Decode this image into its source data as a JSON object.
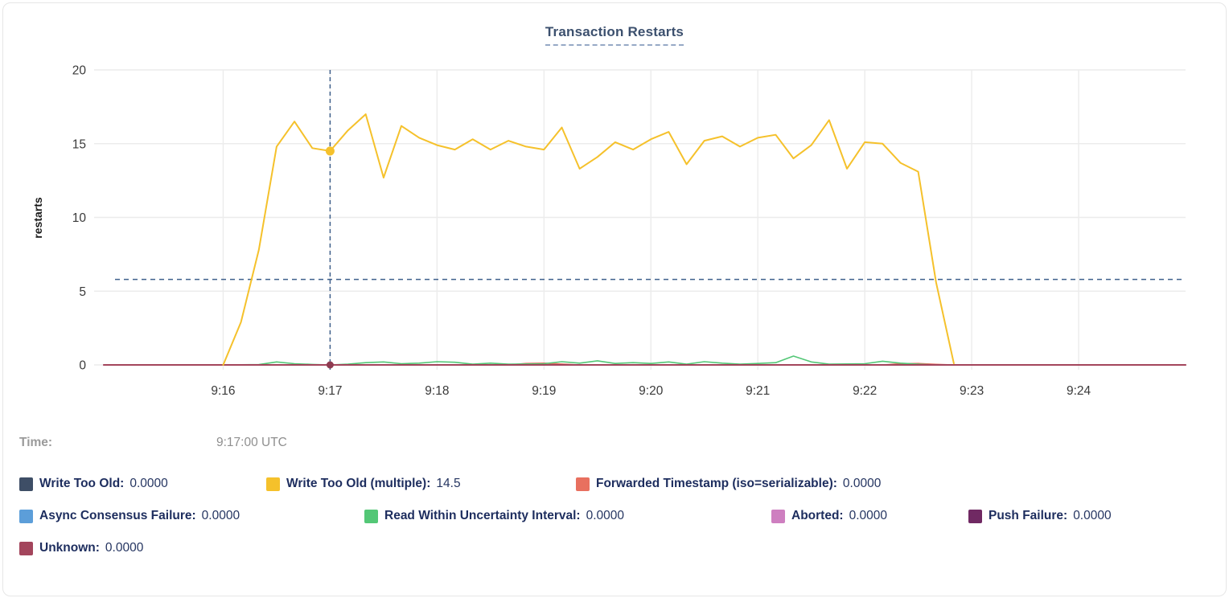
{
  "title": "Transaction Restarts",
  "tooltip": {
    "time_label": "Time:",
    "time_value": "9:17:00 UTC"
  },
  "legend_rows": [
    [
      {
        "key": "write-too-old",
        "label": "Write Too Old:",
        "value": "0.0000",
        "color": "#3E4E66"
      },
      {
        "key": "write-too-old-multiple",
        "label": "Write Too Old (multiple):",
        "value": "14.5",
        "color": "#F5C12B"
      },
      {
        "key": "forwarded-timestamp",
        "label": "Forwarded Timestamp (iso=serializable):",
        "value": "0.0000",
        "color": "#E8705F"
      }
    ],
    [
      {
        "key": "async-consensus-failure",
        "label": "Async Consensus Failure:",
        "value": "0.0000",
        "color": "#5C9ED9"
      },
      {
        "key": "read-within-uncertainty-interval",
        "label": "Read Within Uncertainty Interval:",
        "value": "0.0000",
        "color": "#53C776"
      },
      {
        "key": "aborted",
        "label": "Aborted:",
        "value": "0.0000",
        "color": "#CE7FC0"
      },
      {
        "key": "push-failure",
        "label": "Push Failure:",
        "value": "0.0000",
        "color": "#702963"
      }
    ],
    [
      {
        "key": "unknown",
        "label": "Unknown:",
        "value": "0.0000",
        "color": "#A3455C"
      }
    ]
  ],
  "chart_data": {
    "type": "line",
    "title": "Transaction Restarts",
    "ylabel": "restarts",
    "ylim": [
      0,
      20
    ],
    "y_ticks": [
      0,
      5,
      10,
      15,
      20
    ],
    "x_ticks": [
      "9:16",
      "9:17",
      "9:18",
      "9:19",
      "9:20",
      "9:21",
      "9:22",
      "9:23",
      "9:24"
    ],
    "x_domain": [
      "9:14:53",
      "9:25:00"
    ],
    "grid": true,
    "legend_position": "bottom",
    "series": [
      {
        "name": "Async Consensus Failure",
        "color": "#5C9ED9",
        "width": 1.5,
        "points": [
          [
            "9:14:53",
            0
          ],
          [
            "9:25:00",
            0
          ]
        ]
      },
      {
        "name": "Write Too Old",
        "color": "#3E4E66",
        "width": 1.5,
        "points": [
          [
            "9:14:53",
            0
          ],
          [
            "9:25:00",
            0
          ]
        ]
      },
      {
        "name": "Aborted",
        "color": "#CE7FC0",
        "width": 1.5,
        "points": [
          [
            "9:14:53",
            0
          ],
          [
            "9:25:00",
            0
          ]
        ]
      },
      {
        "name": "Push Failure",
        "color": "#702963",
        "width": 1.5,
        "points": [
          [
            "9:14:53",
            0
          ],
          [
            "9:25:00",
            0
          ]
        ]
      },
      {
        "name": "Forwarded Timestamp (iso=serializable)",
        "color": "#E8705F",
        "width": 1.6,
        "points": [
          [
            "9:14:53",
            0
          ],
          [
            "9:18:40",
            0
          ],
          [
            "9:18:50",
            0.1
          ],
          [
            "9:19:00",
            0.12
          ],
          [
            "9:19:10",
            0.06
          ],
          [
            "9:19:20",
            0
          ],
          [
            "9:22:10",
            0
          ],
          [
            "9:22:20",
            0.08
          ],
          [
            "9:22:30",
            0.1
          ],
          [
            "9:22:40",
            0.04
          ],
          [
            "9:22:50",
            0
          ],
          [
            "9:25:00",
            0
          ]
        ]
      },
      {
        "name": "Read Within Uncertainty Interval",
        "color": "#53C776",
        "width": 1.6,
        "points": [
          [
            "9:16:00",
            0
          ],
          [
            "9:16:20",
            0.02
          ],
          [
            "9:16:30",
            0.2
          ],
          [
            "9:16:40",
            0.08
          ],
          [
            "9:16:50",
            0.03
          ],
          [
            "9:17:00",
            0
          ],
          [
            "9:17:10",
            0.05
          ],
          [
            "9:17:20",
            0.15
          ],
          [
            "9:17:30",
            0.2
          ],
          [
            "9:17:40",
            0.08
          ],
          [
            "9:17:50",
            0.12
          ],
          [
            "9:18:00",
            0.22
          ],
          [
            "9:18:10",
            0.18
          ],
          [
            "9:18:20",
            0.05
          ],
          [
            "9:18:30",
            0.12
          ],
          [
            "9:18:40",
            0.05
          ],
          [
            "9:19:00",
            0.08
          ],
          [
            "9:19:10",
            0.22
          ],
          [
            "9:19:20",
            0.12
          ],
          [
            "9:19:30",
            0.28
          ],
          [
            "9:19:40",
            0.1
          ],
          [
            "9:19:50",
            0.15
          ],
          [
            "9:20:00",
            0.1
          ],
          [
            "9:20:10",
            0.2
          ],
          [
            "9:20:20",
            0.05
          ],
          [
            "9:20:30",
            0.22
          ],
          [
            "9:20:40",
            0.12
          ],
          [
            "9:20:50",
            0.05
          ],
          [
            "9:21:00",
            0.1
          ],
          [
            "9:21:10",
            0.15
          ],
          [
            "9:21:20",
            0.6
          ],
          [
            "9:21:30",
            0.2
          ],
          [
            "9:21:40",
            0.05
          ],
          [
            "9:22:00",
            0.08
          ],
          [
            "9:22:10",
            0.25
          ],
          [
            "9:22:20",
            0.12
          ],
          [
            "9:22:30",
            0.05
          ],
          [
            "9:22:40",
            0
          ]
        ]
      },
      {
        "name": "Unknown",
        "color": "#A3455C",
        "width": 2,
        "points": [
          [
            "9:14:53",
            0
          ],
          [
            "9:25:00",
            0
          ]
        ]
      },
      {
        "name": "Write Too Old (multiple)",
        "color": "#F5C12B",
        "width": 2,
        "points": [
          [
            "9:16:00",
            0
          ],
          [
            "9:16:10",
            2.9
          ],
          [
            "9:16:20",
            7.8
          ],
          [
            "9:16:30",
            14.8
          ],
          [
            "9:16:40",
            16.5
          ],
          [
            "9:16:50",
            14.7
          ],
          [
            "9:17:00",
            14.5
          ],
          [
            "9:17:10",
            15.9
          ],
          [
            "9:17:20",
            17.0
          ],
          [
            "9:17:30",
            12.7
          ],
          [
            "9:17:40",
            16.2
          ],
          [
            "9:17:50",
            15.4
          ],
          [
            "9:18:00",
            14.9
          ],
          [
            "9:18:10",
            14.6
          ],
          [
            "9:18:20",
            15.3
          ],
          [
            "9:18:30",
            14.6
          ],
          [
            "9:18:40",
            15.2
          ],
          [
            "9:18:50",
            14.8
          ],
          [
            "9:19:00",
            14.6
          ],
          [
            "9:19:10",
            16.1
          ],
          [
            "9:19:20",
            13.3
          ],
          [
            "9:19:30",
            14.1
          ],
          [
            "9:19:40",
            15.1
          ],
          [
            "9:19:50",
            14.6
          ],
          [
            "9:20:00",
            15.3
          ],
          [
            "9:20:10",
            15.8
          ],
          [
            "9:20:20",
            13.6
          ],
          [
            "9:20:30",
            15.2
          ],
          [
            "9:20:40",
            15.5
          ],
          [
            "9:20:50",
            14.8
          ],
          [
            "9:21:00",
            15.4
          ],
          [
            "9:21:10",
            15.6
          ],
          [
            "9:21:20",
            14.0
          ],
          [
            "9:21:30",
            14.9
          ],
          [
            "9:21:40",
            16.6
          ],
          [
            "9:21:50",
            13.3
          ],
          [
            "9:22:00",
            15.1
          ],
          [
            "9:22:10",
            15.0
          ],
          [
            "9:22:20",
            13.7
          ],
          [
            "9:22:30",
            13.1
          ],
          [
            "9:22:40",
            5.6
          ],
          [
            "9:22:50",
            0.1
          ]
        ]
      }
    ],
    "annotations": {
      "crosshair_time": "9:17:00",
      "avg_hline_value": 5.8,
      "hover_dots": [
        {
          "time": "9:17:00",
          "value": 14.5,
          "color": "#F5C12B",
          "r": 5.5
        },
        {
          "time": "9:17:00",
          "value": 0,
          "color": "#8F3B51",
          "r": 4.5
        }
      ]
    },
    "colors": {
      "grid": "#ececec",
      "crosshair": "#3f608c",
      "tick_text": "#3a3a3a",
      "axis_title": "#1a1a1a"
    }
  }
}
